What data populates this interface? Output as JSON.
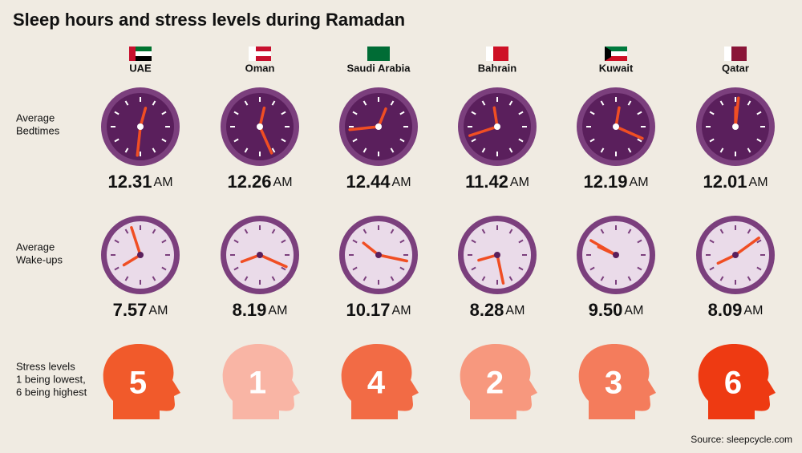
{
  "title": "Sleep hours and stress levels during Ramadan",
  "row_labels": {
    "bedtime": [
      "Average",
      "Bedtimes"
    ],
    "wakeup": [
      "Average",
      "Wake-ups"
    ],
    "stress": [
      "Stress levels",
      "1 being lowest,",
      "6 being highest"
    ]
  },
  "countries": [
    {
      "name": "UAE",
      "bedtime": "12.31",
      "bedtime_period": "AM",
      "wakeup": "7.57",
      "wakeup_period": "AM",
      "stress": 5,
      "stress_color": "#f15a2b"
    },
    {
      "name": "Oman",
      "bedtime": "12.26",
      "bedtime_period": "AM",
      "wakeup": "8.19",
      "wakeup_period": "AM",
      "stress": 1,
      "stress_color": "#f9b5a5"
    },
    {
      "name": "Saudi Arabia",
      "bedtime": "12.44",
      "bedtime_period": "AM",
      "wakeup": "10.17",
      "wakeup_period": "AM",
      "stress": 4,
      "stress_color": "#f26b45"
    },
    {
      "name": "Bahrain",
      "bedtime": "11.42",
      "bedtime_period": "AM",
      "wakeup": "8.28",
      "wakeup_period": "AM",
      "stress": 2,
      "stress_color": "#f7987e"
    },
    {
      "name": "Kuwait",
      "bedtime": "12.19",
      "bedtime_period": "AM",
      "wakeup": "9.50",
      "wakeup_period": "AM",
      "stress": 3,
      "stress_color": "#f47c5c"
    },
    {
      "name": "Qatar",
      "bedtime": "12.01",
      "bedtime_period": "AM",
      "wakeup": "8.09",
      "wakeup_period": "AM",
      "stress": 6,
      "stress_color": "#ee3a12"
    }
  ],
  "source": "Source: sleepcycle.com"
}
